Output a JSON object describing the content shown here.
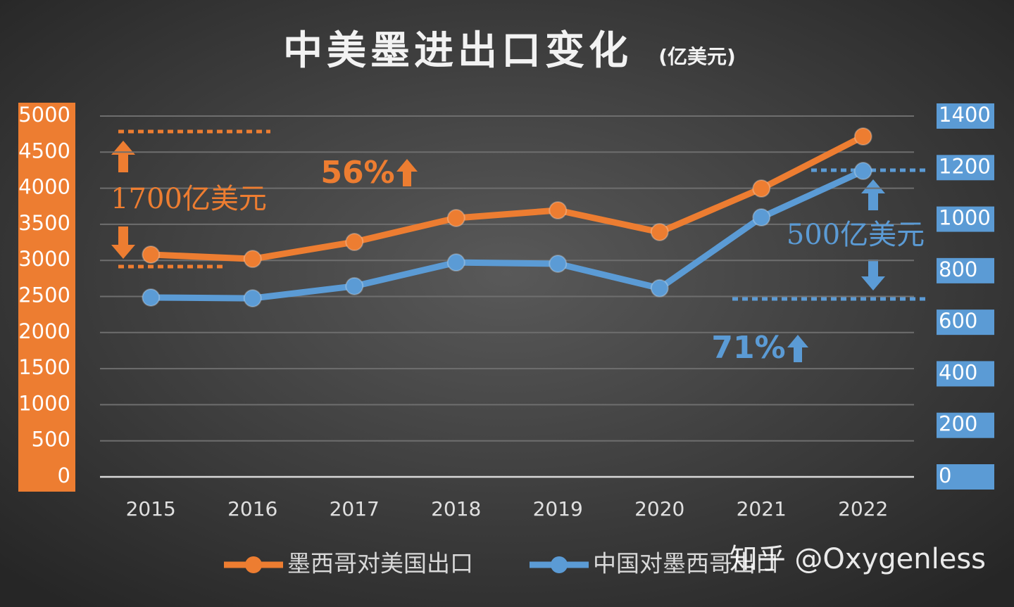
{
  "chart_data": {
    "type": "line",
    "title": "中美墨进出口变化",
    "subtitle": "(亿美元)",
    "categories": [
      "2015",
      "2016",
      "2017",
      "2018",
      "2019",
      "2020",
      "2021",
      "2022"
    ],
    "series": [
      {
        "name": "墨西哥对美国出口",
        "color": "#ed7d31",
        "values": [
          3080,
          3020,
          3255,
          3587,
          3694,
          3392,
          3996,
          4717
        ]
      },
      {
        "name": "中国对墨西哥出口",
        "color": "#5b9bd5",
        "axis": "y2",
        "values": [
          696,
          693,
          740,
          832,
          827,
          732,
          1007,
          1187
        ]
      }
    ],
    "ylim": [
      0,
      5000
    ],
    "yticks": [
      0,
      500,
      1000,
      1500,
      2000,
      2500,
      3000,
      3500,
      4000,
      4500,
      5000
    ],
    "y2lim": [
      0,
      1400
    ],
    "y2ticks": [
      0,
      200,
      400,
      600,
      800,
      1000,
      1200,
      1400
    ],
    "grid": true,
    "annotations": [
      {
        "text": "1700亿美元",
        "color": "#ed7d31"
      },
      {
        "text": "56%",
        "color": "#ed7d31"
      },
      {
        "text": "500亿美元",
        "color": "#5b9bd5"
      },
      {
        "text": "71%",
        "color": "#5b9bd5"
      }
    ],
    "watermark": "知乎 @Oxygenless"
  }
}
